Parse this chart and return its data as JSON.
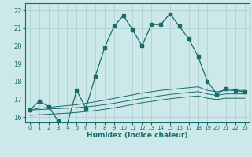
{
  "title": "",
  "xlabel": "Humidex (Indice chaleur)",
  "ylabel": "",
  "bg_color": "#cce8e8",
  "grid_color": "#aacece",
  "line_color": "#1a6b6b",
  "xlim": [
    -0.5,
    23.5
  ],
  "ylim": [
    15.7,
    22.4
  ],
  "yticks": [
    16,
    17,
    18,
    19,
    20,
    21,
    22
  ],
  "xticks": [
    0,
    1,
    2,
    3,
    4,
    5,
    6,
    7,
    8,
    9,
    10,
    11,
    12,
    13,
    14,
    15,
    16,
    17,
    18,
    19,
    20,
    21,
    22,
    23
  ],
  "series1_x": [
    0,
    1,
    2,
    3,
    4,
    5,
    6,
    7,
    8,
    9,
    10,
    11,
    12,
    13,
    14,
    15,
    16,
    17,
    18,
    19,
    20,
    21,
    22,
    23
  ],
  "series1_y": [
    16.4,
    16.9,
    16.6,
    15.8,
    15.6,
    17.5,
    16.5,
    18.3,
    19.9,
    21.1,
    21.7,
    20.9,
    20.0,
    21.2,
    21.2,
    21.8,
    21.1,
    20.4,
    19.4,
    18.0,
    17.3,
    17.6,
    17.5,
    17.4
  ],
  "series2_x": [
    0,
    1,
    2,
    3,
    4,
    5,
    6,
    7,
    8,
    9,
    10,
    11,
    12,
    13,
    14,
    15,
    16,
    17,
    18,
    19,
    20,
    21,
    22,
    23
  ],
  "series2_y": [
    16.4,
    16.5,
    16.55,
    16.6,
    16.65,
    16.7,
    16.78,
    16.86,
    16.95,
    17.05,
    17.15,
    17.25,
    17.35,
    17.42,
    17.5,
    17.55,
    17.6,
    17.65,
    17.7,
    17.5,
    17.42,
    17.5,
    17.5,
    17.5
  ],
  "series3_x": [
    0,
    1,
    2,
    3,
    4,
    5,
    6,
    7,
    8,
    9,
    10,
    11,
    12,
    13,
    14,
    15,
    16,
    17,
    18,
    19,
    20,
    21,
    22,
    23
  ],
  "series3_y": [
    16.4,
    16.42,
    16.45,
    16.48,
    16.5,
    16.53,
    16.58,
    16.63,
    16.7,
    16.78,
    16.87,
    16.96,
    17.05,
    17.12,
    17.2,
    17.27,
    17.33,
    17.38,
    17.43,
    17.3,
    17.22,
    17.3,
    17.3,
    17.3
  ],
  "series4_x": [
    0,
    1,
    2,
    3,
    4,
    5,
    6,
    7,
    8,
    9,
    10,
    11,
    12,
    13,
    14,
    15,
    16,
    17,
    18,
    19,
    20,
    21,
    22,
    23
  ],
  "series4_y": [
    16.1,
    16.13,
    16.16,
    16.19,
    16.22,
    16.26,
    16.31,
    16.37,
    16.44,
    16.52,
    16.61,
    16.71,
    16.81,
    16.88,
    16.96,
    17.03,
    17.09,
    17.14,
    17.19,
    17.06,
    16.99,
    17.06,
    17.06,
    17.06
  ]
}
